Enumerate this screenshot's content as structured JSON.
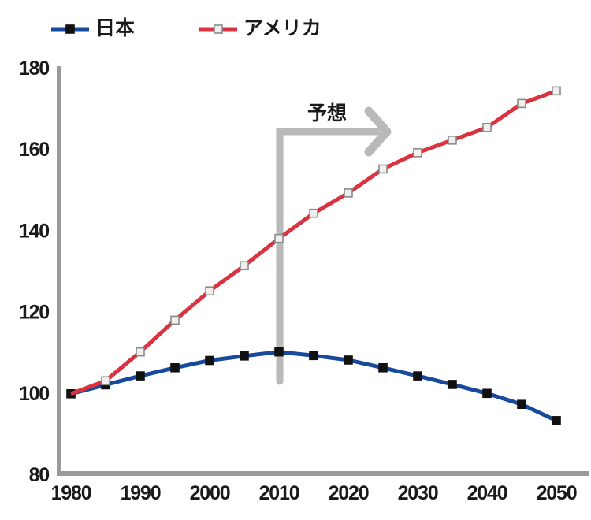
{
  "legend": {
    "items": [
      {
        "label": "日本",
        "series": "japan",
        "color": "#17499d",
        "marker": "filled-black-square"
      },
      {
        "label": "アメリカ",
        "series": "america",
        "color": "#d8333f",
        "marker": "open-white-square"
      }
    ]
  },
  "colors": {
    "axis": "#9a9a9a",
    "annotation_arrow": "#b9b9b9",
    "text": "#1a1a1a"
  },
  "chart_data": {
    "type": "line",
    "x": [
      1980,
      1985,
      1990,
      1995,
      2000,
      2005,
      2010,
      2015,
      2020,
      2025,
      2030,
      2035,
      2040,
      2045,
      2050
    ],
    "series": [
      {
        "name": "日本",
        "color": "#17499d",
        "marker_shape": "square",
        "marker_fill": "#111111",
        "marker_stroke": "#111111",
        "marker_skip_indices": [],
        "values": [
          100,
          102.2,
          104.4,
          106.4,
          108.2,
          109.3,
          110.3,
          109.4,
          108.3,
          106.4,
          104.4,
          102.3,
          100.1,
          97.4,
          93.4
        ]
      },
      {
        "name": "アメリカ",
        "color": "#d8333f",
        "marker_shape": "square",
        "marker_fill": "#f0efed",
        "marker_stroke": "#8a8a8a",
        "marker_skip_indices": [
          0
        ],
        "values": [
          100,
          103.2,
          110.3,
          118.1,
          125.3,
          131.5,
          138.2,
          144.4,
          149.4,
          155.3,
          159.3,
          162.4,
          165.5,
          171.4,
          174.5
        ]
      }
    ],
    "title": "",
    "xlabel": "",
    "ylabel": "",
    "x_ticks": [
      1980,
      1990,
      2000,
      2010,
      2020,
      2030,
      2040,
      2050
    ],
    "y_ticks": [
      80,
      100,
      120,
      140,
      160,
      180
    ],
    "xlim": [
      1980,
      2050
    ],
    "ylim": [
      80,
      180
    ],
    "grid": false,
    "legend_position": "top-left",
    "annotation": {
      "text": "予想",
      "at_x": 2010,
      "arrow": "L-shape pointing right from year 2010 upward"
    }
  }
}
